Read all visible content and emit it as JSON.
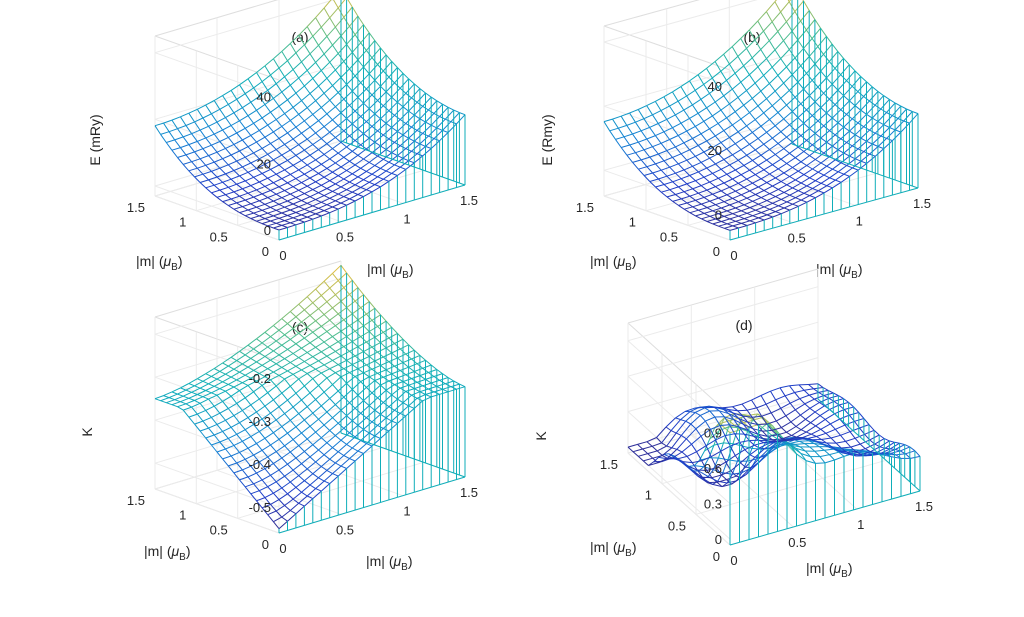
{
  "figure": {
    "description_colors": {
      "low": "#3b1f9e",
      "mid": "#1f9dc2",
      "teal": "#3cc8b0",
      "high": "#e0c24a"
    }
  },
  "chart_data": [
    {
      "id": "a",
      "type": "surface",
      "title": "(a)",
      "xlabel": "|m| (",
      "ylabel": "|m| (",
      "zlabel": "E (mRy)",
      "mu_symbol": "μ",
      "mu_sub": "B",
      "close_paren": ")",
      "x_ticks": [
        "0",
        "0.5",
        "1",
        "1.5"
      ],
      "y_ticks": [
        "0",
        "0.5",
        "1",
        "1.5"
      ],
      "z_ticks": [
        "0",
        "20",
        "40"
      ],
      "x_range": [
        0,
        1.5
      ],
      "y_range": [
        0,
        1.5
      ],
      "z_range": [
        -3,
        45
      ],
      "surface": "bowl",
      "surface_params": {
        "min": 0,
        "edge": 15,
        "corner": 43
      },
      "grid": true
    },
    {
      "id": "b",
      "type": "surface",
      "title": "(b)",
      "xlabel": "|m| (",
      "ylabel": "|m| (",
      "zlabel": "E (Rmy)",
      "mu_symbol": "μ",
      "mu_sub": "B",
      "close_paren": ")",
      "x_ticks": [
        "0",
        "0.5",
        "1",
        "1.5"
      ],
      "y_ticks": [
        "0",
        "0.5",
        "1",
        "1.5"
      ],
      "z_ticks": [
        "0",
        "20",
        "40"
      ],
      "x_range": [
        0,
        1.5
      ],
      "y_range": [
        0,
        1.5
      ],
      "z_range": [
        -8,
        45
      ],
      "surface": "bowl",
      "surface_params": {
        "min": -5,
        "edge": 13,
        "corner": 43
      },
      "grid": true
    },
    {
      "id": "c",
      "type": "surface",
      "title": "(c)",
      "xlabel": "|m| (",
      "ylabel": "|m| (",
      "zlabel": "K",
      "mu_symbol": "μ",
      "mu_sub": "B",
      "close_paren": ")",
      "x_ticks": [
        "0",
        "0.5",
        "1",
        "1.5"
      ],
      "y_ticks": [
        "0",
        "0.5",
        "1",
        "1.5"
      ],
      "z_ticks": [
        "-0.5",
        "-0.4",
        "-0.3",
        "-0.2"
      ],
      "x_range": [
        0,
        1.5
      ],
      "y_range": [
        0,
        1.5
      ],
      "z_range": [
        -0.56,
        -0.16
      ],
      "surface": "saddle",
      "surface_params": {
        "min": -0.55,
        "flat": -0.35,
        "corner": -0.17
      },
      "grid": true
    },
    {
      "id": "d",
      "type": "surface",
      "title": "(d)",
      "xlabel": "|m| (",
      "ylabel": "|m| (",
      "zlabel": "K",
      "mu_symbol": "μ",
      "mu_sub": "B",
      "close_paren": ")",
      "x_ticks": [
        "0",
        "0.5",
        "1",
        "1.5"
      ],
      "y_ticks": [
        "0",
        "0.5",
        "1",
        "1.5"
      ],
      "z_ticks": [
        "0",
        "0.3",
        "0.6",
        "0.9"
      ],
      "x_range": [
        0,
        1.5
      ],
      "y_range": [
        0,
        1.5
      ],
      "z_range": [
        -0.05,
        1.05
      ],
      "surface": "noisy",
      "surface_params": {
        "peak": 0.9,
        "base": 0.1
      },
      "grid": true
    }
  ]
}
